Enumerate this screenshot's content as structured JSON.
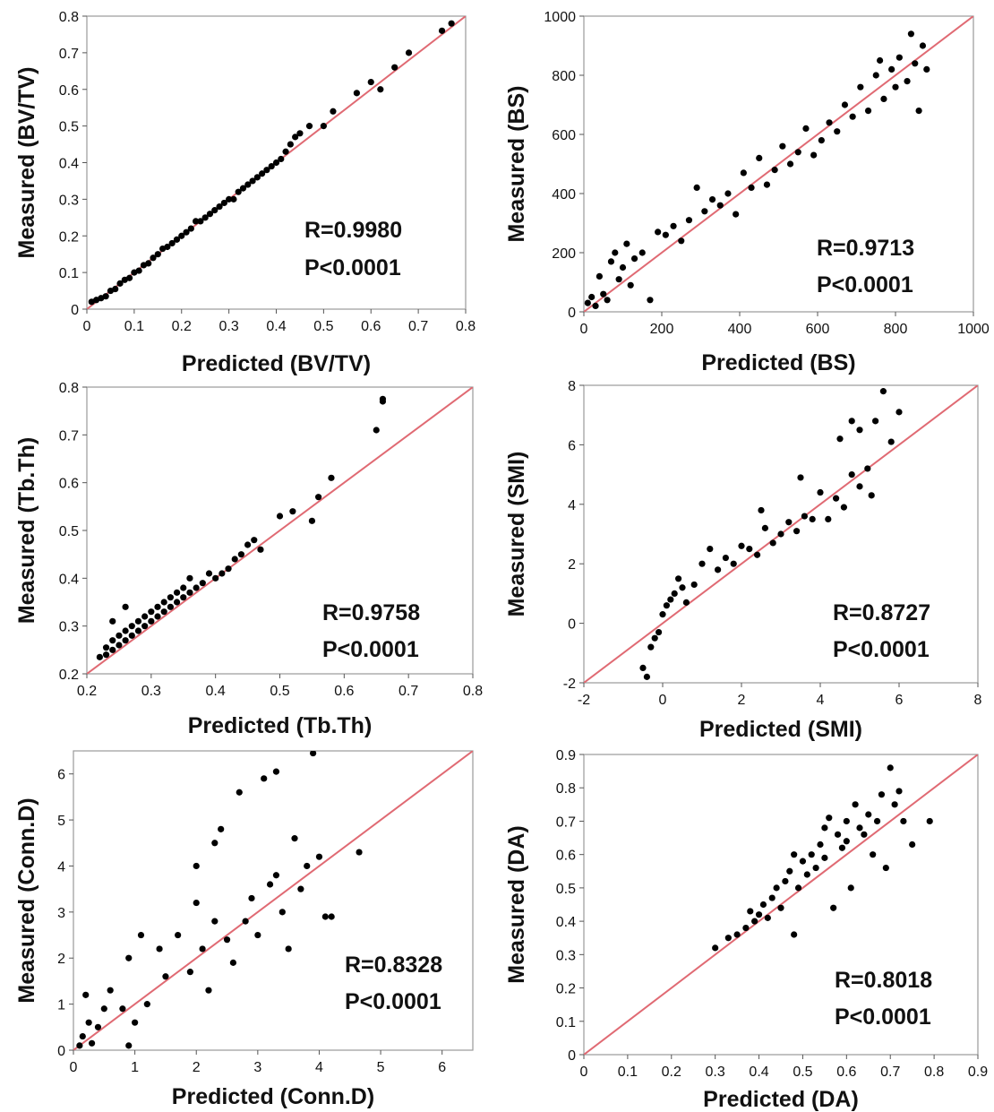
{
  "colors": {
    "line": "#e06a73",
    "point": "#000000",
    "frame": "#9a9a9a",
    "tickmark": "#555555"
  },
  "chart_data": [
    {
      "type": "scatter",
      "xlabel": "Predicted (BV/TV)",
      "ylabel": "Measured (BV/TV)",
      "xlim": [
        0,
        0.8
      ],
      "ylim": [
        0,
        0.8
      ],
      "xticks": [
        0,
        0.1,
        0.2,
        0.3,
        0.4,
        0.5,
        0.6,
        0.7,
        0.8
      ],
      "yticks": [
        0,
        0.1,
        0.2,
        0.3,
        0.4,
        0.5,
        0.6,
        0.7,
        0.8
      ],
      "xtick_labels": [
        "0",
        "0.1",
        "0.2",
        "0.3",
        "0.4",
        "0.5",
        "0.6",
        "0.7",
        "0.8"
      ],
      "ytick_labels": [
        "0",
        "0.1",
        "0.2",
        "0.3",
        "0.4",
        "0.5",
        "0.6",
        "0.7",
        "0.8"
      ],
      "annotation": [
        "R=0.9980",
        "P<0.0001"
      ],
      "fit_line": [
        [
          0,
          0
        ],
        [
          0.8,
          0.8
        ]
      ],
      "x": [
        0.01,
        0.02,
        0.03,
        0.04,
        0.05,
        0.06,
        0.07,
        0.08,
        0.09,
        0.1,
        0.11,
        0.12,
        0.13,
        0.14,
        0.15,
        0.16,
        0.17,
        0.18,
        0.19,
        0.2,
        0.21,
        0.22,
        0.23,
        0.24,
        0.25,
        0.26,
        0.27,
        0.28,
        0.29,
        0.3,
        0.31,
        0.32,
        0.33,
        0.34,
        0.35,
        0.36,
        0.37,
        0.38,
        0.39,
        0.4,
        0.41,
        0.42,
        0.43,
        0.44,
        0.45,
        0.47,
        0.5,
        0.52,
        0.57,
        0.6,
        0.62,
        0.65,
        0.68,
        0.75,
        0.77
      ],
      "y": [
        0.02,
        0.025,
        0.03,
        0.035,
        0.05,
        0.055,
        0.07,
        0.08,
        0.085,
        0.1,
        0.105,
        0.12,
        0.125,
        0.14,
        0.15,
        0.165,
        0.17,
        0.18,
        0.19,
        0.2,
        0.21,
        0.22,
        0.24,
        0.24,
        0.25,
        0.26,
        0.27,
        0.28,
        0.29,
        0.3,
        0.3,
        0.32,
        0.33,
        0.34,
        0.35,
        0.36,
        0.37,
        0.38,
        0.39,
        0.4,
        0.41,
        0.43,
        0.45,
        0.47,
        0.48,
        0.5,
        0.5,
        0.54,
        0.59,
        0.62,
        0.6,
        0.66,
        0.7,
        0.76,
        0.78
      ]
    },
    {
      "type": "scatter",
      "xlabel": "Predicted (BS)",
      "ylabel": "Measured (BS)",
      "xlim": [
        0,
        1000
      ],
      "ylim": [
        0,
        1000
      ],
      "xticks": [
        0,
        200,
        400,
        600,
        800,
        1000
      ],
      "yticks": [
        0,
        200,
        400,
        600,
        800,
        1000
      ],
      "xtick_labels": [
        "0",
        "200",
        "400",
        "600",
        "800",
        "1000"
      ],
      "ytick_labels": [
        "0",
        "200",
        "400",
        "600",
        "800",
        "1000"
      ],
      "annotation": [
        "R=0.9713",
        "P<0.0001"
      ],
      "fit_line": [
        [
          0,
          0
        ],
        [
          1000,
          1000
        ]
      ],
      "x": [
        10,
        20,
        30,
        40,
        50,
        60,
        70,
        80,
        90,
        100,
        110,
        120,
        130,
        150,
        170,
        190,
        210,
        230,
        250,
        270,
        290,
        310,
        330,
        350,
        370,
        390,
        410,
        430,
        450,
        470,
        490,
        510,
        530,
        550,
        570,
        590,
        610,
        630,
        650,
        670,
        690,
        710,
        730,
        750,
        770,
        790,
        810,
        830,
        850,
        870,
        880,
        860,
        840,
        800,
        760
      ],
      "y": [
        30,
        50,
        20,
        120,
        60,
        40,
        170,
        200,
        110,
        150,
        230,
        90,
        180,
        200,
        40,
        270,
        260,
        290,
        240,
        310,
        420,
        340,
        380,
        360,
        400,
        330,
        470,
        420,
        520,
        430,
        480,
        560,
        500,
        540,
        620,
        530,
        580,
        640,
        610,
        700,
        660,
        760,
        680,
        800,
        720,
        820,
        860,
        780,
        840,
        900,
        820,
        680,
        940,
        760,
        850
      ]
    },
    {
      "type": "scatter",
      "xlabel": "Predicted (Tb.Th)",
      "ylabel": "Measured (Tb.Th)",
      "xlim": [
        0.2,
        0.8
      ],
      "ylim": [
        0.2,
        0.8
      ],
      "xticks": [
        0.2,
        0.3,
        0.4,
        0.5,
        0.6,
        0.7,
        0.8
      ],
      "yticks": [
        0.2,
        0.3,
        0.4,
        0.5,
        0.6,
        0.7,
        0.8
      ],
      "xtick_labels": [
        "0.2",
        "0.3",
        "0.4",
        "0.5",
        "0.6",
        "0.7",
        "0.8"
      ],
      "ytick_labels": [
        "0.2",
        "0.3",
        "0.4",
        "0.5",
        "0.6",
        "0.7",
        "0.8"
      ],
      "annotation": [
        "R=0.9758",
        "P<0.0001"
      ],
      "fit_line": [
        [
          0.2,
          0.2
        ],
        [
          0.8,
          0.8
        ]
      ],
      "x": [
        0.22,
        0.23,
        0.23,
        0.24,
        0.24,
        0.25,
        0.25,
        0.26,
        0.26,
        0.27,
        0.27,
        0.28,
        0.28,
        0.29,
        0.29,
        0.3,
        0.3,
        0.31,
        0.31,
        0.32,
        0.32,
        0.33,
        0.33,
        0.34,
        0.34,
        0.35,
        0.35,
        0.36,
        0.36,
        0.37,
        0.38,
        0.39,
        0.4,
        0.41,
        0.42,
        0.43,
        0.44,
        0.45,
        0.46,
        0.47,
        0.5,
        0.52,
        0.55,
        0.56,
        0.58,
        0.65,
        0.66,
        0.66,
        0.24,
        0.26
      ],
      "y": [
        0.235,
        0.24,
        0.255,
        0.25,
        0.27,
        0.26,
        0.28,
        0.27,
        0.29,
        0.28,
        0.3,
        0.29,
        0.31,
        0.3,
        0.32,
        0.31,
        0.33,
        0.32,
        0.34,
        0.33,
        0.35,
        0.34,
        0.36,
        0.35,
        0.37,
        0.36,
        0.38,
        0.37,
        0.4,
        0.38,
        0.39,
        0.41,
        0.4,
        0.41,
        0.42,
        0.44,
        0.45,
        0.47,
        0.48,
        0.46,
        0.53,
        0.54,
        0.52,
        0.57,
        0.61,
        0.71,
        0.77,
        0.775,
        0.31,
        0.34
      ]
    },
    {
      "type": "scatter",
      "xlabel": "Predicted (SMI)",
      "ylabel": "Measured (SMI)",
      "xlim": [
        -2,
        8
      ],
      "ylim": [
        -2,
        8
      ],
      "xticks": [
        -2,
        0,
        2,
        4,
        6,
        8
      ],
      "yticks": [
        -2,
        0,
        2,
        4,
        6,
        8
      ],
      "xtick_labels": [
        "-2",
        "0",
        "2",
        "4",
        "6",
        "8"
      ],
      "ytick_labels": [
        "-2",
        "0",
        "2",
        "4",
        "6",
        "8"
      ],
      "annotation": [
        "R=0.8727",
        "P<0.0001"
      ],
      "fit_line": [
        [
          -2,
          -2
        ],
        [
          8,
          8
        ]
      ],
      "x": [
        -0.5,
        -0.4,
        -0.3,
        -0.2,
        -0.1,
        0,
        0.1,
        0.2,
        0.3,
        0.4,
        0.5,
        0.6,
        0.8,
        1.0,
        1.2,
        1.4,
        1.6,
        1.8,
        2.0,
        2.2,
        2.4,
        2.6,
        2.8,
        3.0,
        3.2,
        3.4,
        3.6,
        3.8,
        4.0,
        4.2,
        4.4,
        4.6,
        4.8,
        5.0,
        5.2,
        5.4,
        5.6,
        5.8,
        6.0,
        4.5,
        5.0,
        5.3,
        4.8,
        3.5,
        2.5
      ],
      "y": [
        -1.5,
        -1.8,
        -0.8,
        -0.5,
        -0.3,
        0.3,
        0.6,
        0.8,
        1.0,
        1.5,
        1.2,
        0.7,
        1.3,
        2.0,
        2.5,
        1.8,
        2.2,
        2.0,
        2.6,
        2.5,
        2.3,
        3.2,
        2.7,
        3.0,
        3.4,
        3.1,
        3.6,
        3.5,
        4.4,
        3.5,
        4.2,
        3.9,
        5.0,
        6.5,
        5.2,
        6.8,
        7.8,
        6.1,
        7.1,
        6.2,
        4.6,
        4.3,
        6.8,
        4.9,
        3.8
      ]
    },
    {
      "type": "scatter",
      "xlabel": "Predicted (Conn.D)",
      "ylabel": "Measured (Conn.D)",
      "xlim": [
        0,
        6.5
      ],
      "ylim": [
        0,
        6.5
      ],
      "xticks": [
        0,
        1,
        2,
        3,
        4,
        5,
        6
      ],
      "yticks": [
        0,
        1,
        2,
        3,
        4,
        5,
        6
      ],
      "xtick_labels": [
        "0",
        "1",
        "2",
        "3",
        "4",
        "5",
        "6"
      ],
      "ytick_labels": [
        "0",
        "1",
        "2",
        "3",
        "4",
        "5",
        "6"
      ],
      "annotation": [
        "R=0.8328",
        "P<0.0001"
      ],
      "fit_line": [
        [
          0,
          0
        ],
        [
          6.5,
          6.5
        ]
      ],
      "x": [
        0.1,
        0.15,
        0.2,
        0.25,
        0.3,
        0.4,
        0.5,
        0.6,
        0.8,
        0.9,
        1.0,
        1.1,
        1.2,
        1.4,
        1.5,
        1.7,
        1.9,
        2.0,
        2.1,
        2.2,
        2.3,
        2.4,
        2.5,
        2.6,
        2.7,
        2.8,
        2.9,
        3.0,
        3.1,
        3.2,
        3.3,
        3.4,
        3.5,
        3.6,
        3.7,
        3.8,
        3.9,
        4.0,
        4.1,
        4.2,
        4.65,
        2.3,
        2.0,
        3.3,
        0.9
      ],
      "y": [
        0.1,
        0.3,
        1.2,
        0.6,
        0.15,
        0.5,
        0.9,
        1.3,
        0.9,
        2.0,
        0.6,
        2.5,
        1.0,
        2.2,
        1.6,
        2.5,
        1.7,
        4.0,
        2.2,
        1.3,
        2.8,
        4.8,
        2.4,
        1.9,
        5.6,
        2.8,
        3.3,
        2.5,
        5.9,
        3.6,
        6.05,
        3.0,
        2.2,
        4.6,
        3.5,
        4.0,
        6.45,
        4.2,
        2.9,
        2.9,
        4.3,
        4.5,
        3.2,
        3.8,
        0.1
      ]
    },
    {
      "type": "scatter",
      "xlabel": "Predicted (DA)",
      "ylabel": "Measured (DA)",
      "xlim": [
        0,
        0.9
      ],
      "ylim": [
        0,
        0.9
      ],
      "xticks": [
        0,
        0.1,
        0.2,
        0.3,
        0.4,
        0.5,
        0.6,
        0.7,
        0.8,
        0.9
      ],
      "yticks": [
        0,
        0.1,
        0.2,
        0.3,
        0.4,
        0.5,
        0.6,
        0.7,
        0.8,
        0.9
      ],
      "xtick_labels": [
        "0",
        "0.1",
        "0.2",
        "0.3",
        "0.4",
        "0.5",
        "0.6",
        "0.7",
        "0.8",
        "0.9"
      ],
      "ytick_labels": [
        "0",
        "0.1",
        "0.2",
        "0.3",
        "0.4",
        "0.5",
        "0.6",
        "0.7",
        "0.8",
        "0.9"
      ],
      "annotation": [
        "R=0.8018",
        "P<0.0001"
      ],
      "fit_line": [
        [
          0,
          0
        ],
        [
          0.9,
          0.9
        ]
      ],
      "x": [
        0.3,
        0.33,
        0.35,
        0.37,
        0.38,
        0.39,
        0.4,
        0.41,
        0.42,
        0.43,
        0.44,
        0.45,
        0.46,
        0.47,
        0.48,
        0.49,
        0.5,
        0.51,
        0.52,
        0.53,
        0.54,
        0.55,
        0.56,
        0.57,
        0.58,
        0.59,
        0.6,
        0.61,
        0.62,
        0.63,
        0.64,
        0.65,
        0.66,
        0.67,
        0.68,
        0.69,
        0.7,
        0.71,
        0.72,
        0.73,
        0.75,
        0.79,
        0.48,
        0.55,
        0.6
      ],
      "y": [
        0.32,
        0.35,
        0.36,
        0.38,
        0.43,
        0.4,
        0.42,
        0.45,
        0.41,
        0.47,
        0.5,
        0.44,
        0.52,
        0.55,
        0.36,
        0.5,
        0.58,
        0.54,
        0.6,
        0.56,
        0.63,
        0.59,
        0.71,
        0.44,
        0.66,
        0.62,
        0.7,
        0.5,
        0.75,
        0.68,
        0.66,
        0.72,
        0.6,
        0.7,
        0.78,
        0.56,
        0.86,
        0.75,
        0.79,
        0.7,
        0.63,
        0.7,
        0.6,
        0.68,
        0.64
      ]
    }
  ]
}
